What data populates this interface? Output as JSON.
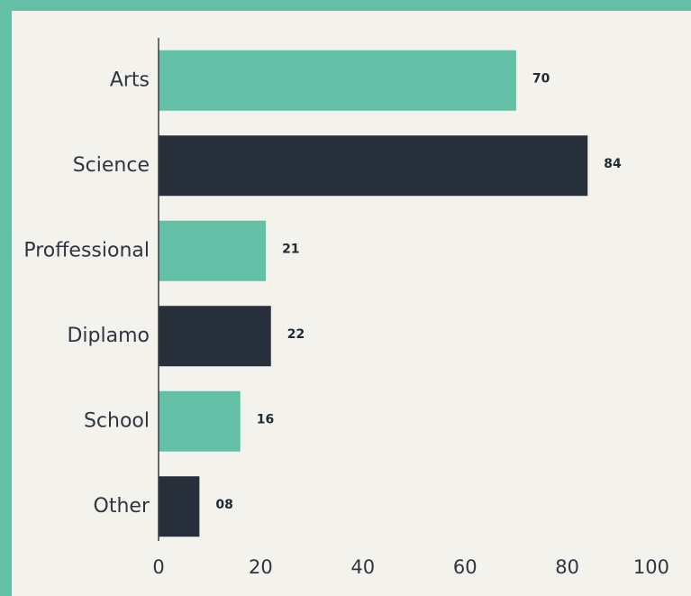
{
  "chart_data": {
    "type": "bar",
    "orientation": "horizontal",
    "categories": [
      "Arts",
      "Science",
      "Proffessional",
      "Diplamo",
      "School",
      "Other"
    ],
    "values": [
      70,
      84,
      21,
      22,
      16,
      8
    ],
    "value_labels": [
      "70",
      "84",
      "21",
      "22",
      "16",
      "08"
    ],
    "xlim": [
      0,
      100
    ],
    "xticks": [
      0,
      20,
      40,
      60,
      80,
      100
    ],
    "title": "",
    "xlabel": "",
    "ylabel": "",
    "grid": false,
    "legend": "none",
    "bar_colors": [
      "#63c0a6",
      "#262f3a"
    ]
  },
  "colors": {
    "frame": "#63c0a6",
    "background": "#f4f2ec",
    "axis": "#3a3f45"
  }
}
